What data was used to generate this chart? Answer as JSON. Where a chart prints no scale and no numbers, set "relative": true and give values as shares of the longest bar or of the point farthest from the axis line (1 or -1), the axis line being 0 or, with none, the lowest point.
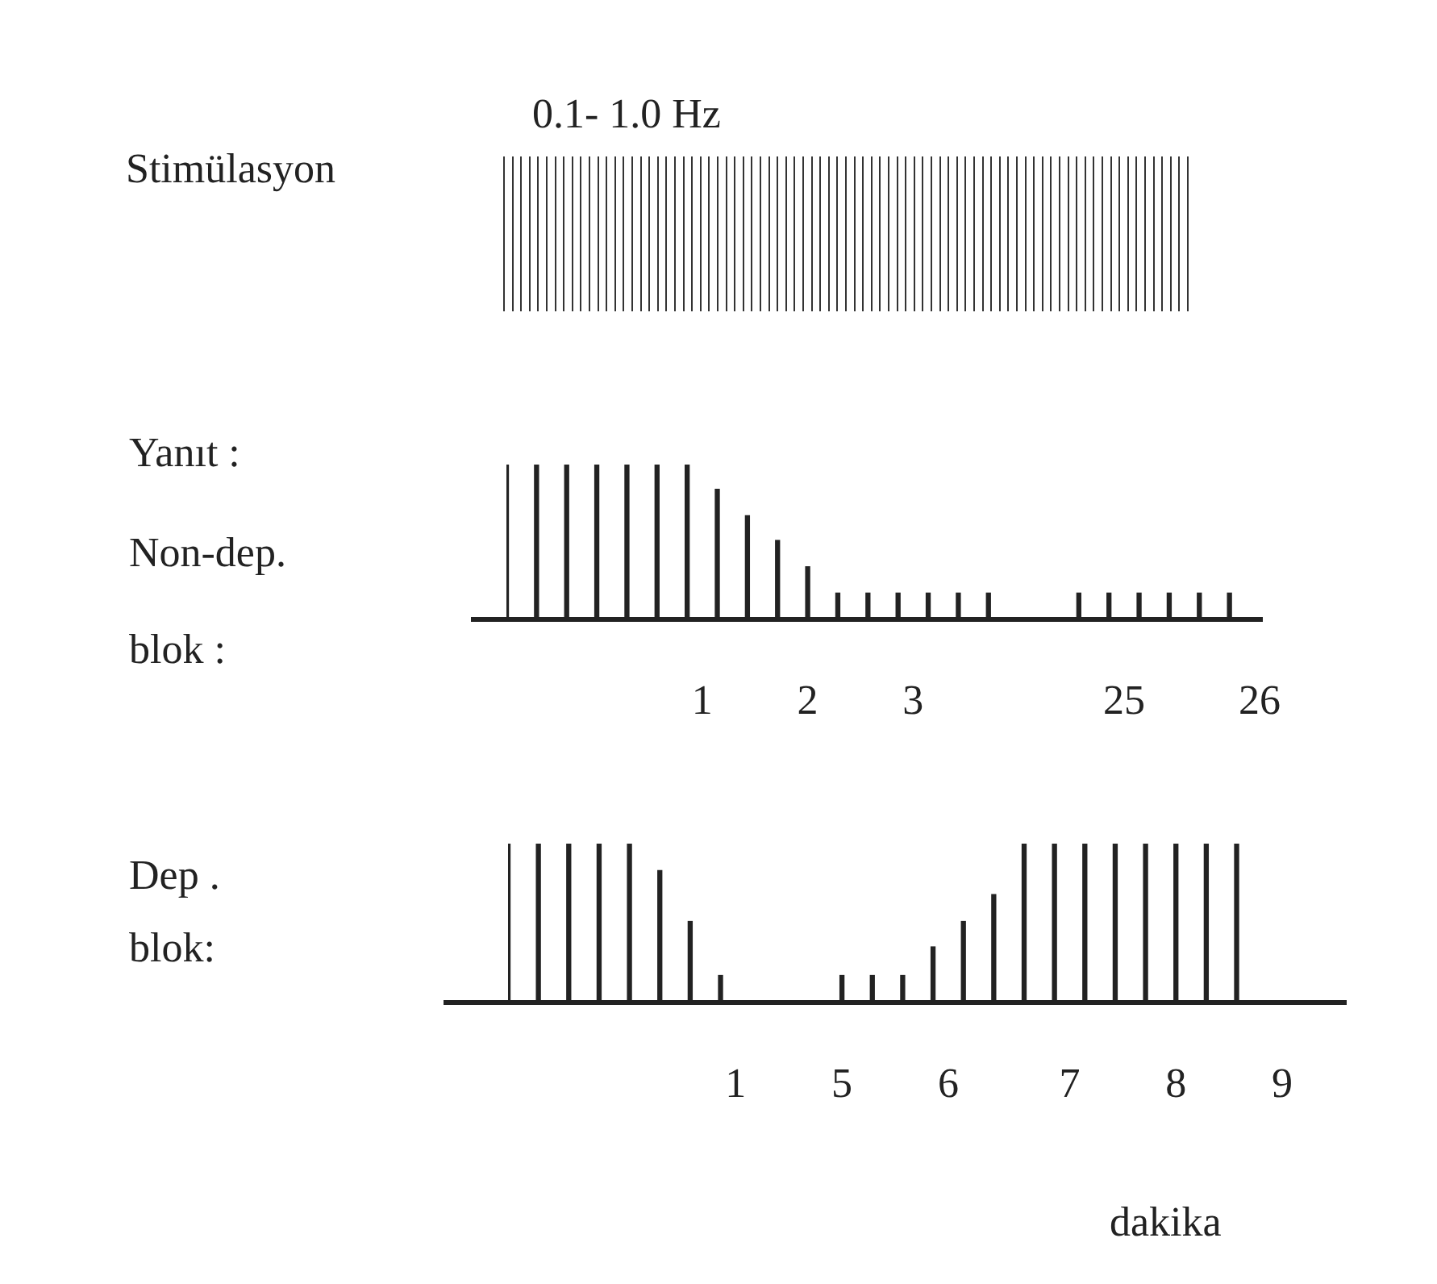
{
  "chart_data": [
    {
      "type": "other",
      "title": "0.1- 1.0 Hz",
      "annotations": [
        "Stimülasyon"
      ]
    },
    {
      "type": "bar",
      "relative": true,
      "color": "#222222",
      "annotations": [
        "Yanıt :",
        "Non-dep.",
        "blok :"
      ],
      "categories": [
        null,
        null,
        null,
        null,
        null,
        null,
        null,
        null,
        null,
        null,
        null,
        null,
        null,
        "1",
        null,
        null,
        null,
        null,
        null,
        null,
        "2",
        null,
        null,
        null,
        null,
        null,
        null,
        "3",
        null,
        null,
        null,
        null,
        null,
        null,
        null,
        null,
        null,
        null,
        null,
        null,
        null,
        "25",
        null,
        null,
        null,
        null,
        null,
        null,
        null,
        null,
        "26"
      ],
      "values": [
        1,
        null,
        1,
        null,
        1,
        null,
        1,
        null,
        1,
        null,
        1,
        null,
        1,
        null,
        0.84,
        null,
        0.67,
        null,
        0.51,
        null,
        0.34,
        null,
        0.17,
        null,
        0.17,
        null,
        0.17,
        null,
        0.17,
        null,
        0.17,
        null,
        0.17,
        null,
        null,
        null,
        null,
        null,
        0.17,
        null,
        0.17,
        null,
        0.17,
        null,
        0.17,
        null,
        0.17,
        null,
        0.17,
        null,
        null
      ]
    },
    {
      "type": "bar",
      "relative": true,
      "color": "#222222",
      "annotations": [
        "Dep .",
        "blok:"
      ],
      "xlabel": "dakika",
      "categories": [
        null,
        null,
        null,
        null,
        null,
        null,
        null,
        null,
        null,
        null,
        null,
        null,
        null,
        null,
        null,
        "1",
        null,
        null,
        null,
        null,
        null,
        null,
        "5",
        null,
        null,
        null,
        null,
        null,
        null,
        "6",
        null,
        null,
        null,
        null,
        null,
        null,
        null,
        "7",
        null,
        null,
        null,
        null,
        null,
        null,
        "8",
        null,
        null,
        null,
        null,
        null,
        null,
        "9"
      ],
      "values": [
        1,
        null,
        1,
        null,
        1,
        null,
        1,
        null,
        1,
        null,
        0.83,
        null,
        0.51,
        null,
        0.17,
        null,
        null,
        null,
        null,
        null,
        null,
        null,
        0.17,
        null,
        0.17,
        null,
        0.17,
        null,
        0.35,
        null,
        0.51,
        null,
        0.68,
        null,
        1,
        null,
        1,
        null,
        1,
        null,
        1,
        null,
        1,
        null,
        1,
        null,
        1,
        null,
        1,
        null,
        null,
        null
      ]
    }
  ]
}
